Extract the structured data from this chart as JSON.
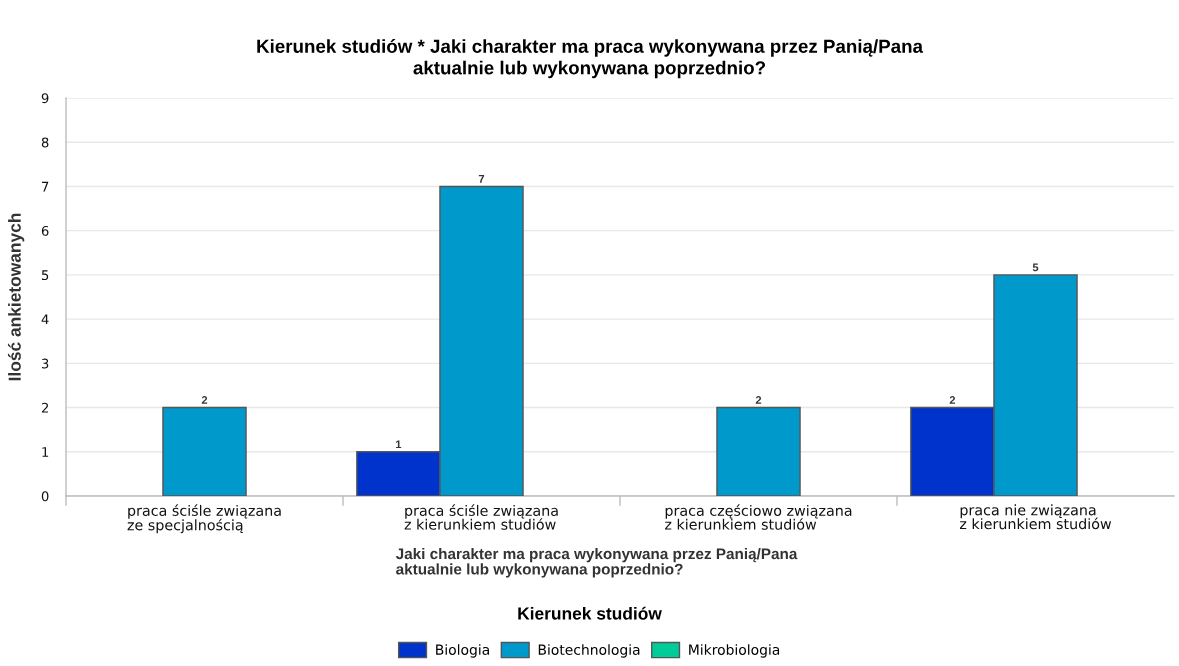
{
  "chart_data": {
    "type": "bar",
    "title": "Kierunek studiów * Jaki charakter ma praca wykonywana przez Panią/Pana\naktualnie lub wykonywana poprzednio?",
    "xlabel": "Jaki charakter ma praca wykonywana przez Panią/Pana\naktualnie lub wykonywana poprzednio?",
    "ylabel": "Ilość ankietowanych",
    "legend_title": "Kierunek studiów",
    "categories": [
      "praca ściśle związana\nze specjalnością",
      "praca ściśle związana\nz kierunkiem studiów",
      "praca częściowo związana\nz kierunkiem studiów",
      "praca nie związana\nz kierunkiem studiów"
    ],
    "series": [
      {
        "name": "Biologia",
        "color": "#0033cc",
        "values": [
          null,
          1,
          null,
          2
        ]
      },
      {
        "name": "Biotechnologia",
        "color": "#0099cc",
        "values": [
          2,
          7,
          2,
          5
        ]
      },
      {
        "name": "Mikrobiologia",
        "color": "#00cc99",
        "values": [
          null,
          null,
          null,
          null
        ]
      }
    ],
    "ylim": [
      0,
      9
    ],
    "yticks": [
      0,
      1,
      2,
      3,
      4,
      5,
      6,
      7,
      8,
      9
    ],
    "grid": "y",
    "legend": "bottom",
    "data_labels": true
  }
}
